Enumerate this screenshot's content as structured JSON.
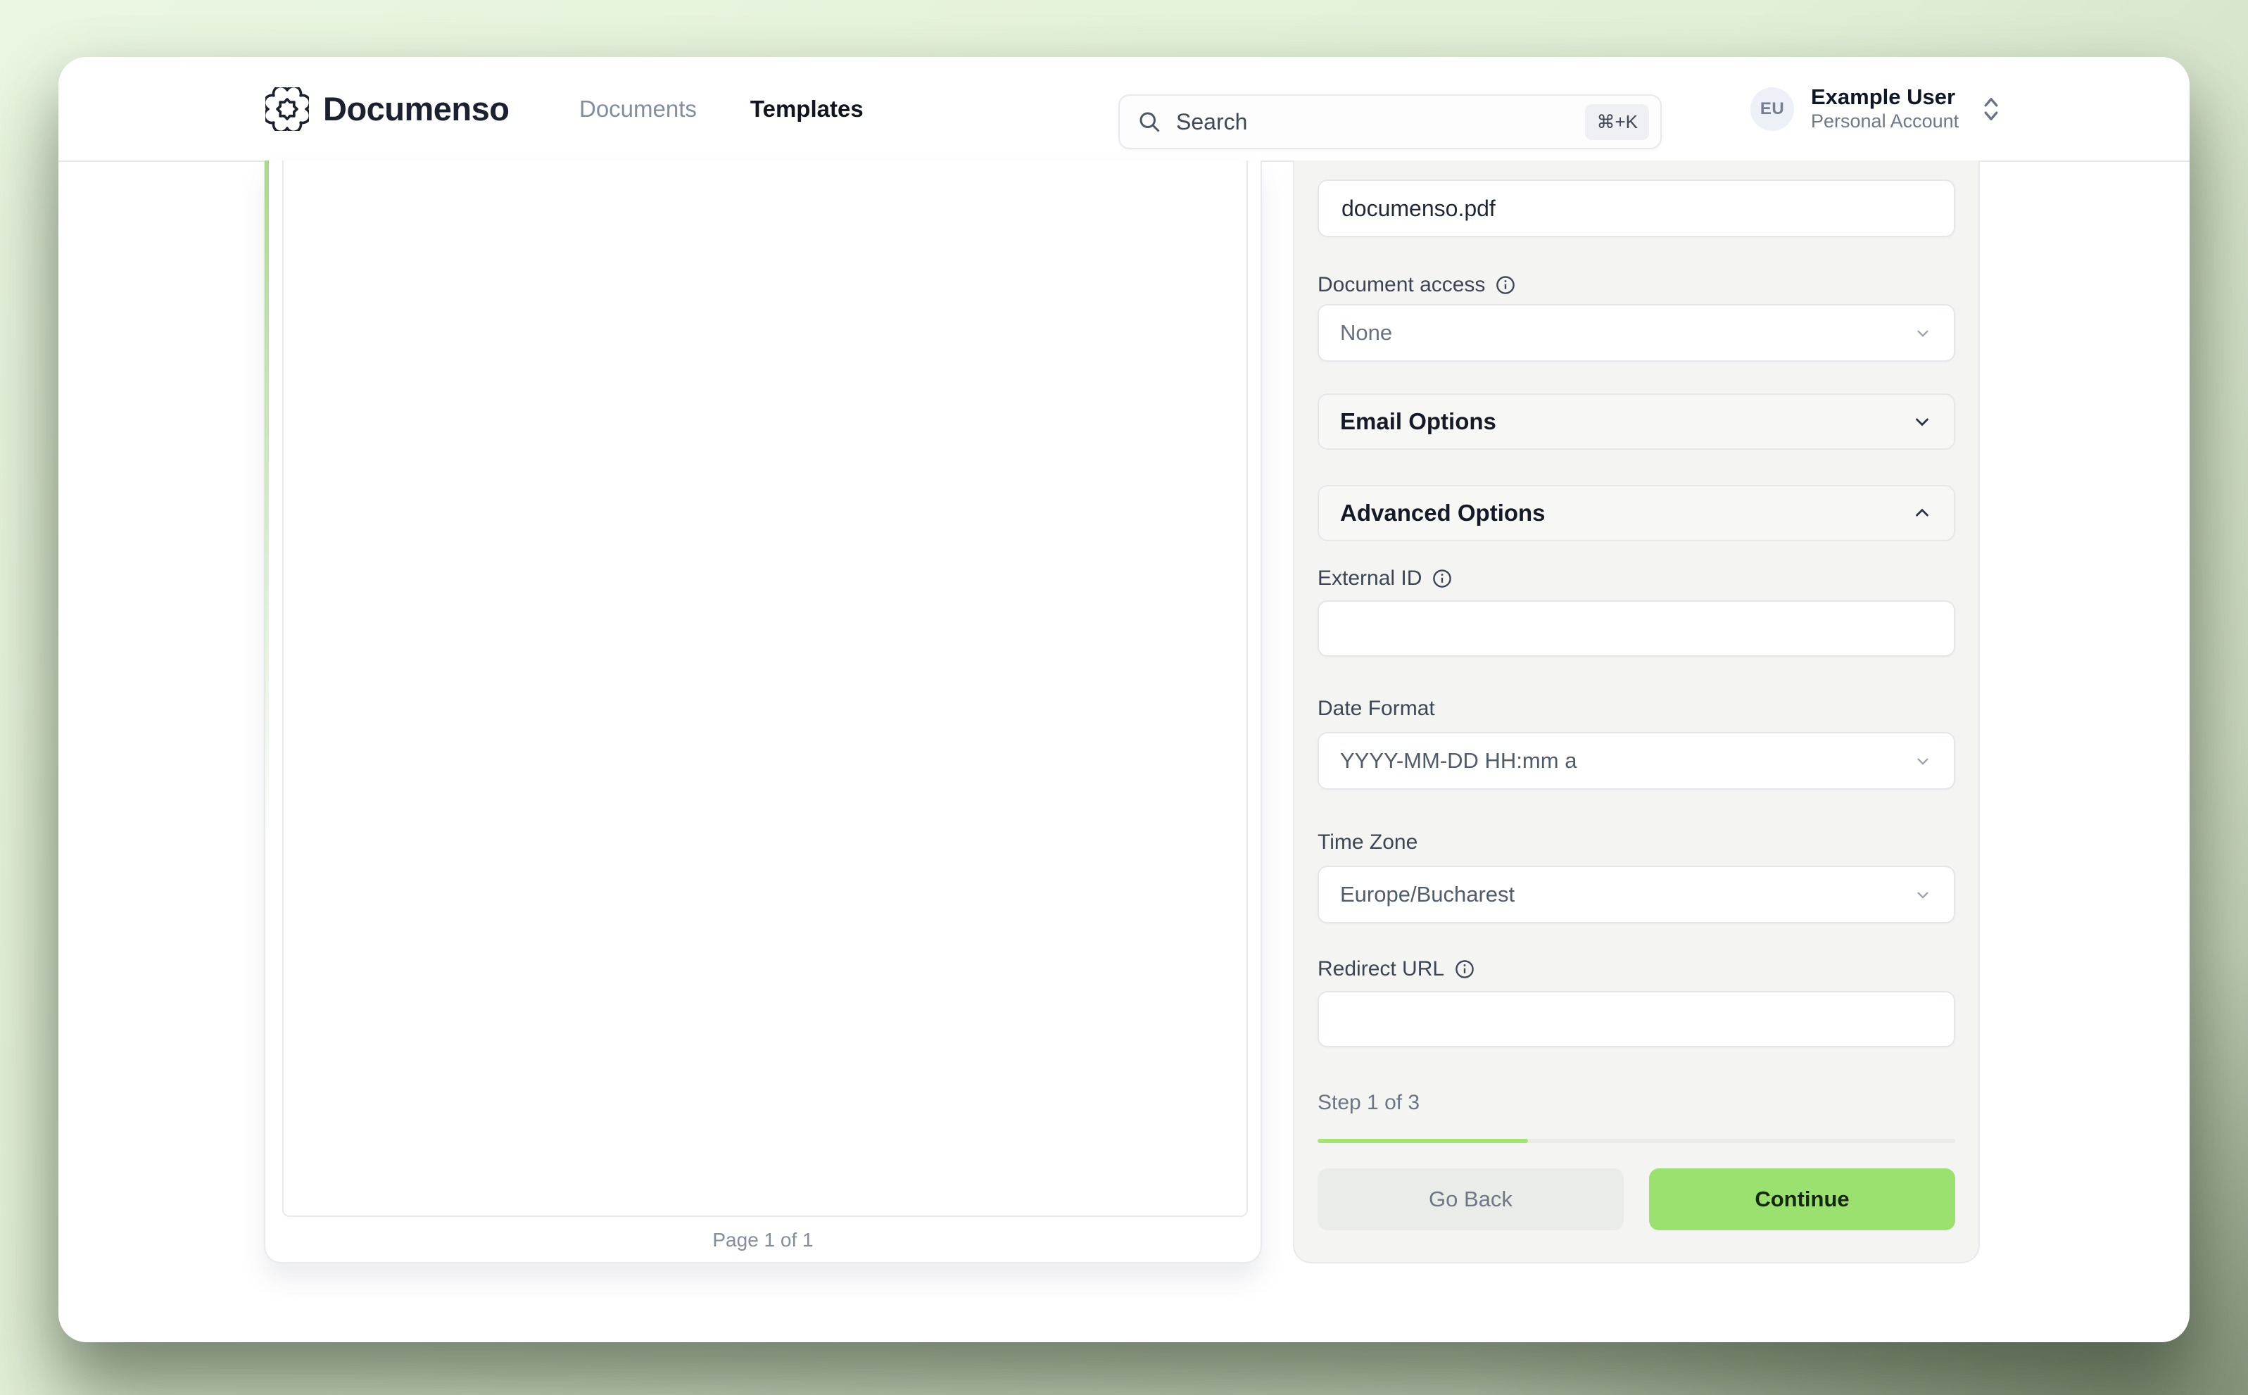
{
  "header": {
    "brand": "Documenso",
    "nav_documents": "Documents",
    "nav_templates": "Templates",
    "search": {
      "placeholder": "Search",
      "shortcut": "⌘+K"
    },
    "user": {
      "initials": "EU",
      "name": "Example User",
      "account_type": "Personal Account"
    }
  },
  "preview": {
    "page_indicator": "Page 1 of 1"
  },
  "form": {
    "title_value": "documenso.pdf",
    "document_access_label": "Document access",
    "document_access_value": "None",
    "email_options_label": "Email Options",
    "advanced_options_label": "Advanced Options",
    "external_id_label": "External ID",
    "external_id_value": "",
    "date_format_label": "Date Format",
    "date_format_value": "YYYY-MM-DD HH:mm a",
    "time_zone_label": "Time Zone",
    "time_zone_value": "Europe/Bucharest",
    "redirect_url_label": "Redirect URL",
    "redirect_url_value": "",
    "step_text": "Step 1 of 3",
    "progress_percent": 33,
    "go_back_label": "Go Back",
    "continue_label": "Continue"
  },
  "colors": {
    "accent_green": "#9BE170",
    "progress_green": "#A4E473",
    "stripe_green": "#A9D88D",
    "brand_navy": "#1C2130",
    "panel_gray": "#F4F5F3"
  }
}
